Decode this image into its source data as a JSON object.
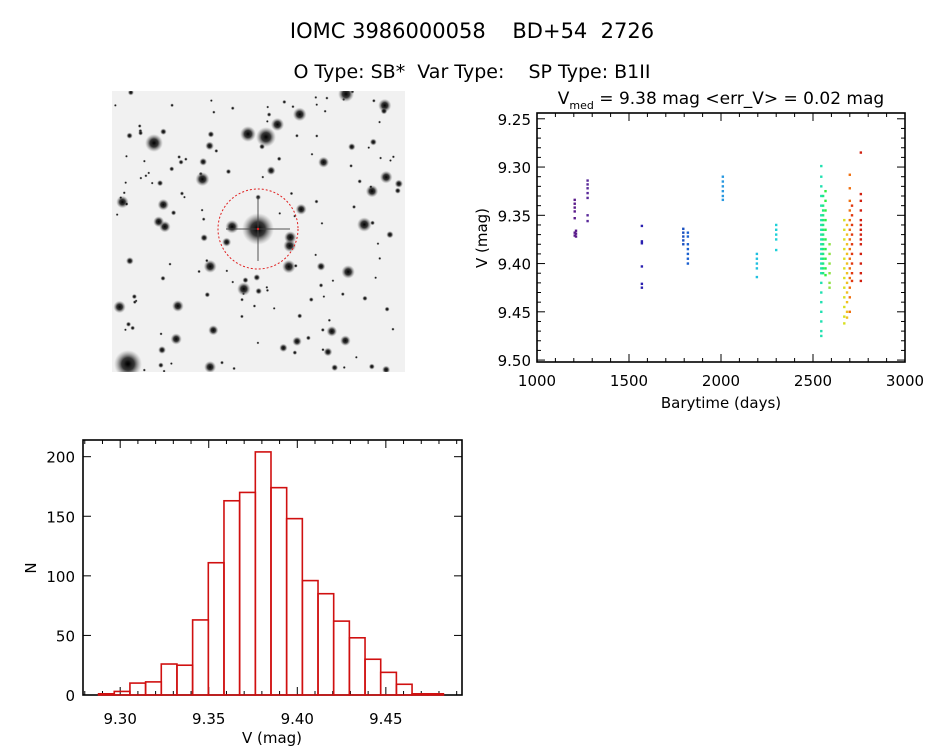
{
  "header": {
    "title": "IOMC 3986000058    BD+54  2726",
    "subtitle": "O Type: SB*  Var Type:    SP Type: B1II"
  },
  "sky_image": {
    "alt": "finder chart",
    "target_marker_color": "#e02020"
  },
  "chart_data": [
    {
      "type": "scatter",
      "title_main": "V",
      "title_sub": "med",
      "title_rest": " = 9.38 mag <err_V> = 0.02 mag",
      "xlabel": "Barytime (days)",
      "ylabel": "V (mag)",
      "xlim": [
        1000,
        3000
      ],
      "ylim": [
        9.244,
        9.502
      ],
      "y_inverted": true,
      "xticks": [
        1000,
        1500,
        2000,
        2500,
        3000
      ],
      "xtick_labels": [
        "1000",
        "1500",
        "2000",
        "2500",
        "3000"
      ],
      "yticks": [
        9.25,
        9.3,
        9.35,
        9.4,
        9.45,
        9.5
      ],
      "ytick_labels": [
        "9.25",
        "9.30",
        "9.35",
        "9.40",
        "9.45",
        "9.50"
      ],
      "series": [
        {
          "t": 1205,
          "color": "#5a1a8a",
          "v": [
            9.334,
            9.338,
            9.342,
            9.346,
            9.353,
            9.368,
            9.371
          ]
        },
        {
          "t": 1212,
          "color": "#5a1a8a",
          "v": [
            9.366,
            9.369,
            9.372
          ]
        },
        {
          "t": 1275,
          "color": "#5a2a9a",
          "v": [
            9.314,
            9.318,
            9.322,
            9.327,
            9.332,
            9.35,
            9.356
          ]
        },
        {
          "t": 1570,
          "color": "#2a20b0",
          "v": [
            9.361,
            9.377,
            9.379,
            9.403,
            9.421,
            9.425
          ]
        },
        {
          "t": 1795,
          "color": "#1a50c0",
          "v": [
            9.364,
            9.368,
            9.372,
            9.376,
            9.38
          ]
        },
        {
          "t": 1820,
          "color": "#1a60d0",
          "v": [
            9.368,
            9.372,
            9.38,
            9.385,
            9.39,
            9.395,
            9.4
          ]
        },
        {
          "t": 2010,
          "color": "#2898e0",
          "v": [
            9.31,
            9.315,
            9.32,
            9.325,
            9.33,
            9.334
          ]
        },
        {
          "t": 2195,
          "color": "#20c0e0",
          "v": [
            9.39,
            9.395,
            9.4,
            9.405,
            9.414
          ]
        },
        {
          "t": 2300,
          "color": "#20d0d8",
          "v": [
            9.36,
            9.365,
            9.37,
            9.375,
            9.386
          ]
        },
        {
          "t": 2545,
          "color": "#20e0b0",
          "v": [
            9.299,
            9.31,
            9.32,
            9.33,
            9.34,
            9.35,
            9.355,
            9.36,
            9.365,
            9.37,
            9.375,
            9.38,
            9.385,
            9.39,
            9.395,
            9.4,
            9.405,
            9.41,
            9.42,
            9.43,
            9.44,
            9.45,
            9.46,
            9.47,
            9.475
          ]
        },
        {
          "t": 2555,
          "color": "#20e880",
          "v": [
            9.33,
            9.34,
            9.345,
            9.35,
            9.355,
            9.36,
            9.365,
            9.37,
            9.375,
            9.38,
            9.385,
            9.39,
            9.395,
            9.4,
            9.405,
            9.41
          ]
        },
        {
          "t": 2568,
          "color": "#30f040",
          "v": [
            9.325,
            9.335,
            9.345,
            9.355,
            9.365,
            9.375,
            9.385,
            9.395,
            9.405,
            9.412
          ]
        },
        {
          "t": 2590,
          "color": "#90e040",
          "v": [
            9.38,
            9.39,
            9.4,
            9.41,
            9.42,
            9.425
          ]
        },
        {
          "t": 2670,
          "color": "#d8e020",
          "v": [
            9.355,
            9.365,
            9.375,
            9.385,
            9.395,
            9.405,
            9.415,
            9.425,
            9.435,
            9.445,
            9.455,
            9.462
          ]
        },
        {
          "t": 2685,
          "color": "#f0c020",
          "v": [
            9.36,
            9.37,
            9.38,
            9.39,
            9.4,
            9.41,
            9.42,
            9.43,
            9.44,
            9.45,
            9.456
          ]
        },
        {
          "t": 2700,
          "color": "#f07010",
          "v": [
            9.308,
            9.322,
            9.335,
            9.345,
            9.355,
            9.365,
            9.375,
            9.385,
            9.395,
            9.405,
            9.415,
            9.425,
            9.435,
            9.45
          ]
        },
        {
          "t": 2712,
          "color": "#e03810",
          "v": [
            9.34,
            9.35,
            9.36,
            9.37,
            9.38,
            9.39,
            9.4,
            9.41,
            9.418
          ]
        },
        {
          "t": 2760,
          "color": "#d02010",
          "v": [
            9.285,
            9.328,
            9.335,
            9.345,
            9.355,
            9.36,
            9.365,
            9.37,
            9.375,
            9.38,
            9.39,
            9.4,
            9.41,
            9.418
          ]
        }
      ]
    },
    {
      "type": "bar",
      "subtype": "histogram",
      "xlabel": "V (mag)",
      "ylabel": "N",
      "xlim": [
        9.279,
        9.493
      ],
      "ylim": [
        0,
        214
      ],
      "bin_start": 9.2878,
      "bin_width": 0.00885,
      "values": [
        1,
        3,
        10,
        11,
        26,
        25,
        63,
        111,
        163,
        170,
        204,
        174,
        148,
        96,
        85,
        62,
        48,
        30,
        19,
        9,
        1,
        1
      ],
      "color": "#d01010",
      "xticks": [
        9.3,
        9.35,
        9.4,
        9.45
      ],
      "xtick_labels": [
        "9.30",
        "9.35",
        "9.40",
        "9.45"
      ],
      "yticks": [
        0,
        50,
        100,
        150,
        200
      ],
      "ytick_labels": [
        "0",
        "50",
        "100",
        "150",
        "200"
      ]
    }
  ]
}
